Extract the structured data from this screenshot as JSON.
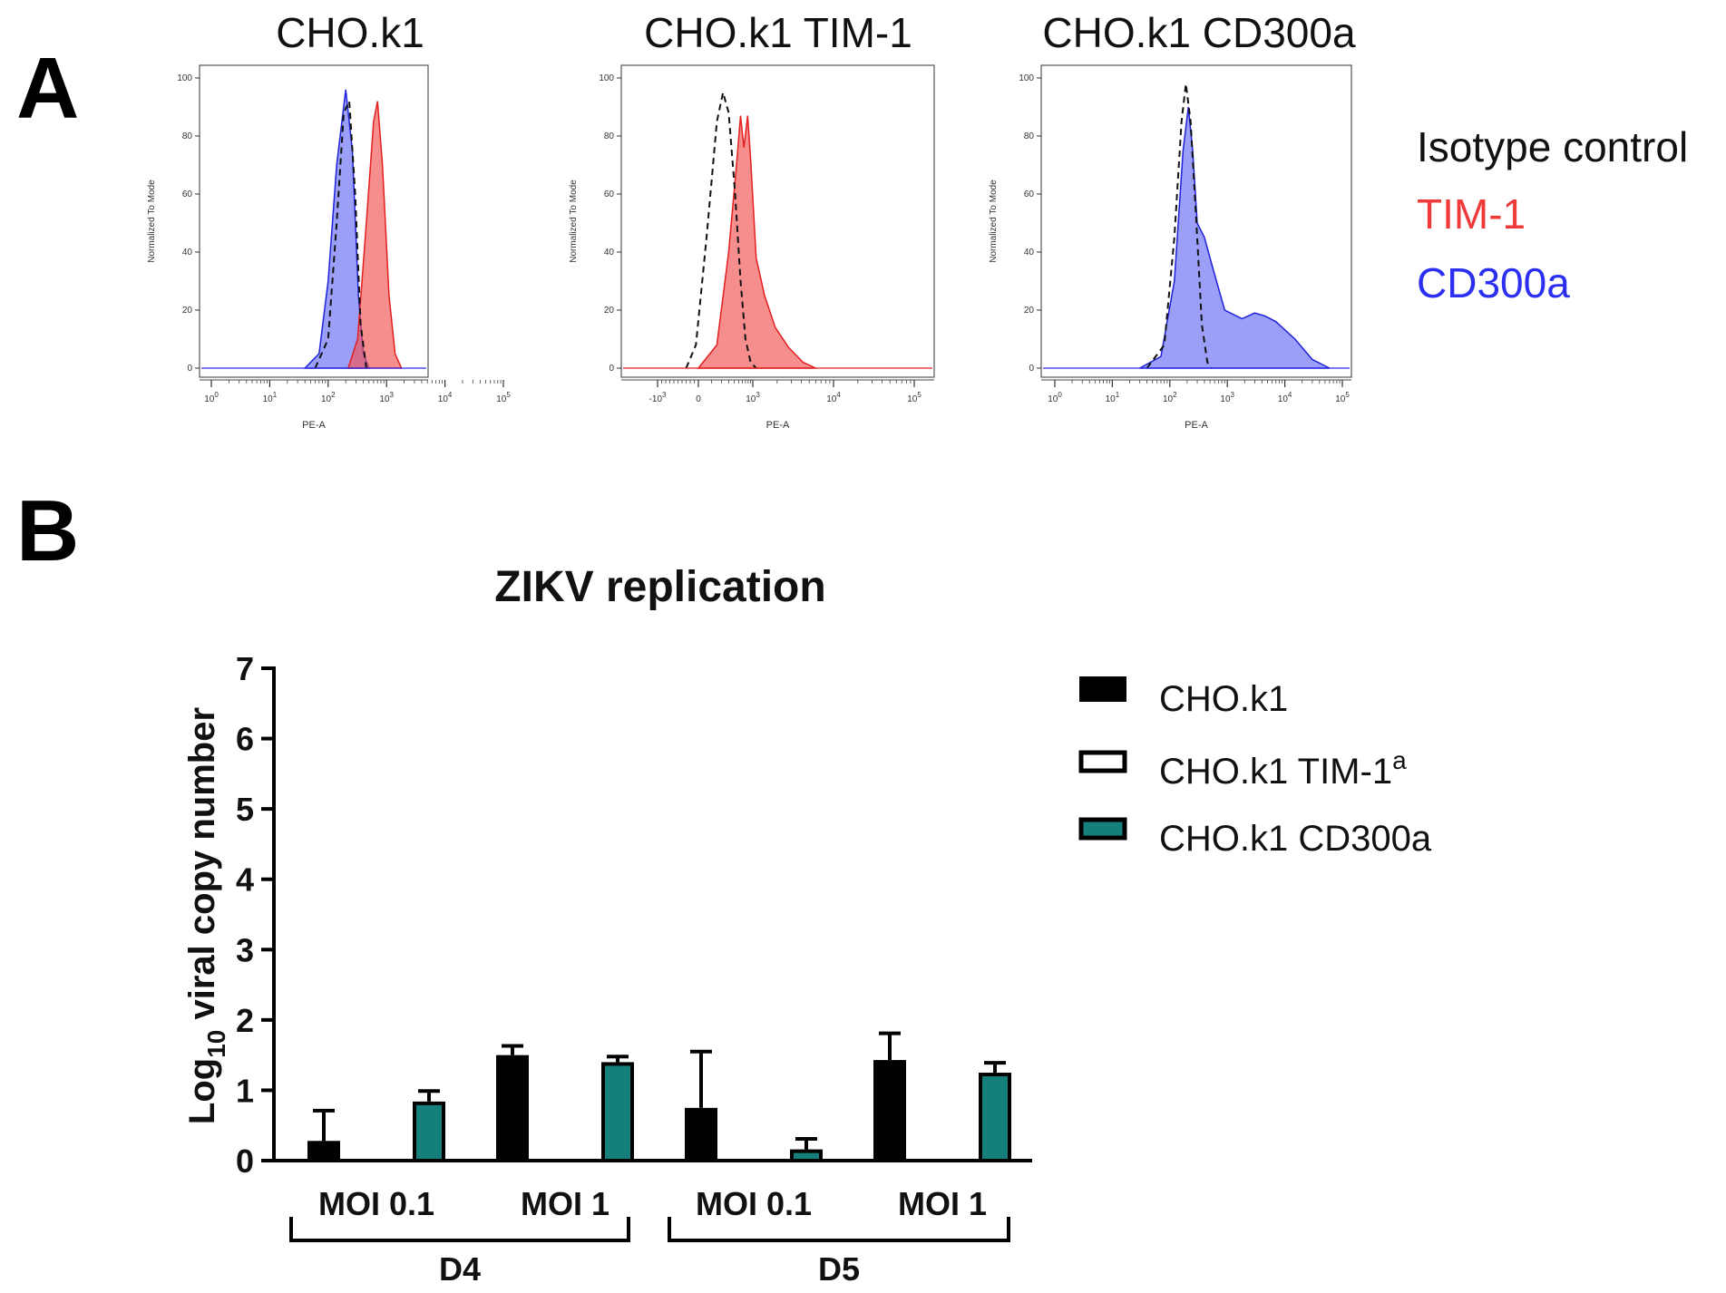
{
  "panel_labels": {
    "a": "A",
    "b": "B"
  },
  "colors": {
    "tim1": "#f25252",
    "cd300a": "#3a3ff2",
    "teal": "#157f7b",
    "black": "#000000"
  },
  "chart_data": [
    {
      "type": "area",
      "title": "CHO.k1",
      "xlabel": "PE-A",
      "ylabel": "Normalized To Mode",
      "x_scale": "log",
      "xlim": [
        0.5,
        150000
      ],
      "ylim": [
        0,
        100
      ],
      "y_ticks": [
        "0",
        "20",
        "40",
        "60",
        "80",
        "100"
      ],
      "x_ticks": [
        {
          "base": "10",
          "exp": "0",
          "v": 1
        },
        {
          "base": "10",
          "exp": "1",
          "v": 10
        },
        {
          "base": "10",
          "exp": "2",
          "v": 100
        },
        {
          "base": "10",
          "exp": "3",
          "v": 1000
        },
        {
          "base": "10",
          "exp": "4",
          "v": 10000
        },
        {
          "base": "10",
          "exp": "5",
          "v": 100000
        }
      ],
      "series": [
        {
          "name": "CD300a",
          "style": "filled-blue",
          "points": [
            [
              40,
              0
            ],
            [
              70,
              5
            ],
            [
              100,
              30
            ],
            [
              140,
              70
            ],
            [
              200,
              96
            ],
            [
              260,
              75
            ],
            [
              330,
              25
            ],
            [
              400,
              5
            ],
            [
              500,
              0
            ]
          ]
        },
        {
          "name": "TIM-1",
          "style": "filled-red",
          "points": [
            [
              220,
              0
            ],
            [
              320,
              10
            ],
            [
              450,
              50
            ],
            [
              600,
              85
            ],
            [
              700,
              92
            ],
            [
              850,
              70
            ],
            [
              1100,
              25
            ],
            [
              1400,
              5
            ],
            [
              1800,
              0
            ]
          ]
        },
        {
          "name": "Isotype control",
          "style": "dashed",
          "points": [
            [
              60,
              0
            ],
            [
              100,
              10
            ],
            [
              140,
              50
            ],
            [
              185,
              88
            ],
            [
              230,
              92
            ],
            [
              290,
              60
            ],
            [
              360,
              15
            ],
            [
              450,
              0
            ]
          ]
        }
      ]
    },
    {
      "type": "area",
      "title": "CHO.k1 TIM-1",
      "xlabel": "PE-A",
      "ylabel": "Normalized To Mode",
      "x_scale": "biexponential",
      "xlim": [
        -2000,
        150000
      ],
      "ylim": [
        0,
        100
      ],
      "y_ticks": [
        "0",
        "20",
        "40",
        "60",
        "80",
        "100"
      ],
      "x_ticks": [
        {
          "base": "-10",
          "exp": "3",
          "v": -1000
        },
        {
          "base": "0",
          "exp": "",
          "v": 0
        },
        {
          "base": "10",
          "exp": "3",
          "v": 1000
        },
        {
          "base": "10",
          "exp": "4",
          "v": 10000
        },
        {
          "base": "10",
          "exp": "5",
          "v": 100000
        }
      ],
      "series": [
        {
          "name": "TIM-1",
          "style": "filled-red",
          "points": [
            [
              0,
              0
            ],
            [
              150,
              8
            ],
            [
              300,
              40
            ],
            [
              450,
              70
            ],
            [
              550,
              87
            ],
            [
              650,
              76
            ],
            [
              780,
              87
            ],
            [
              900,
              72
            ],
            [
              1100,
              38
            ],
            [
              1400,
              25
            ],
            [
              1900,
              14
            ],
            [
              2800,
              7
            ],
            [
              4200,
              2
            ],
            [
              6000,
              0
            ]
          ]
        },
        {
          "name": "Isotype control",
          "style": "dashed",
          "points": [
            [
              -300,
              0
            ],
            [
              -60,
              8
            ],
            [
              60,
              45
            ],
            [
              150,
              85
            ],
            [
              220,
              95
            ],
            [
              300,
              88
            ],
            [
              420,
              60
            ],
            [
              550,
              30
            ],
            [
              700,
              10
            ],
            [
              900,
              2
            ],
            [
              1100,
              0
            ]
          ]
        }
      ]
    },
    {
      "type": "area",
      "title": "CHO.k1 CD300a",
      "xlabel": "PE-A",
      "ylabel": "Normalized To Mode",
      "x_scale": "log",
      "xlim": [
        0.5,
        150000
      ],
      "ylim": [
        0,
        100
      ],
      "y_ticks": [
        "0",
        "20",
        "40",
        "60",
        "80",
        "100"
      ],
      "x_ticks": [
        {
          "base": "10",
          "exp": "0",
          "v": 1
        },
        {
          "base": "10",
          "exp": "1",
          "v": 10
        },
        {
          "base": "10",
          "exp": "2",
          "v": 100
        },
        {
          "base": "10",
          "exp": "3",
          "v": 1000
        },
        {
          "base": "10",
          "exp": "4",
          "v": 10000
        },
        {
          "base": "10",
          "exp": "5",
          "v": 100000
        }
      ],
      "series": [
        {
          "name": "CD300a",
          "style": "filled-blue",
          "points": [
            [
              30,
              0
            ],
            [
              70,
              4
            ],
            [
              120,
              30
            ],
            [
              170,
              75
            ],
            [
              210,
              90
            ],
            [
              250,
              75
            ],
            [
              300,
              50
            ],
            [
              400,
              45
            ],
            [
              550,
              35
            ],
            [
              900,
              20
            ],
            [
              1800,
              17
            ],
            [
              3000,
              19
            ],
            [
              4500,
              18
            ],
            [
              7000,
              16
            ],
            [
              15000,
              10
            ],
            [
              30000,
              3
            ],
            [
              60000,
              0
            ]
          ]
        },
        {
          "name": "Isotype control",
          "style": "dashed",
          "points": [
            [
              40,
              0
            ],
            [
              80,
              8
            ],
            [
              120,
              45
            ],
            [
              160,
              85
            ],
            [
              190,
              98
            ],
            [
              230,
              85
            ],
            [
              290,
              50
            ],
            [
              360,
              15
            ],
            [
              450,
              2
            ],
            [
              520,
              0
            ]
          ]
        }
      ]
    },
    {
      "type": "bar",
      "title": "ZIKV replication",
      "ylabel": {
        "prefix": "Log",
        "sub": "10",
        "suffix": " viral copy number"
      },
      "ylim": [
        0,
        7
      ],
      "y_ticks": [
        "0",
        "1",
        "2",
        "3",
        "4",
        "5",
        "6",
        "7"
      ],
      "categories": [
        "MOI 0.1",
        "MOI 1",
        "MOI 0.1",
        "MOI 1"
      ],
      "groups": [
        {
          "label": "D4",
          "categories": [
            0,
            1
          ]
        },
        {
          "label": "D5",
          "categories": [
            2,
            3
          ]
        }
      ],
      "series": [
        {
          "name": "CHO.k1",
          "color": "#000000",
          "fill": "solid",
          "values": [
            0.28,
            1.5,
            0.75,
            1.43
          ],
          "errors": [
            0.43,
            0.13,
            0.8,
            0.38
          ]
        },
        {
          "name": "CHO.k1 TIM-1",
          "sup": "a",
          "color": "#000000",
          "fill": "open",
          "values": [
            0,
            0,
            0,
            0
          ],
          "errors": [
            0,
            0,
            0,
            0
          ]
        },
        {
          "name": "CHO.k1 CD300a",
          "color": "#157f7b",
          "fill": "solid",
          "values": [
            0.84,
            1.4,
            0.16,
            1.25
          ],
          "errors": [
            0.15,
            0.08,
            0.15,
            0.14
          ]
        }
      ]
    }
  ],
  "legend_a": [
    {
      "label": "Isotype control",
      "color": "#111111"
    },
    {
      "label": "TIM-1",
      "color": "#f03a3a"
    },
    {
      "label": "CD300a",
      "color": "#2a2ff0"
    }
  ]
}
